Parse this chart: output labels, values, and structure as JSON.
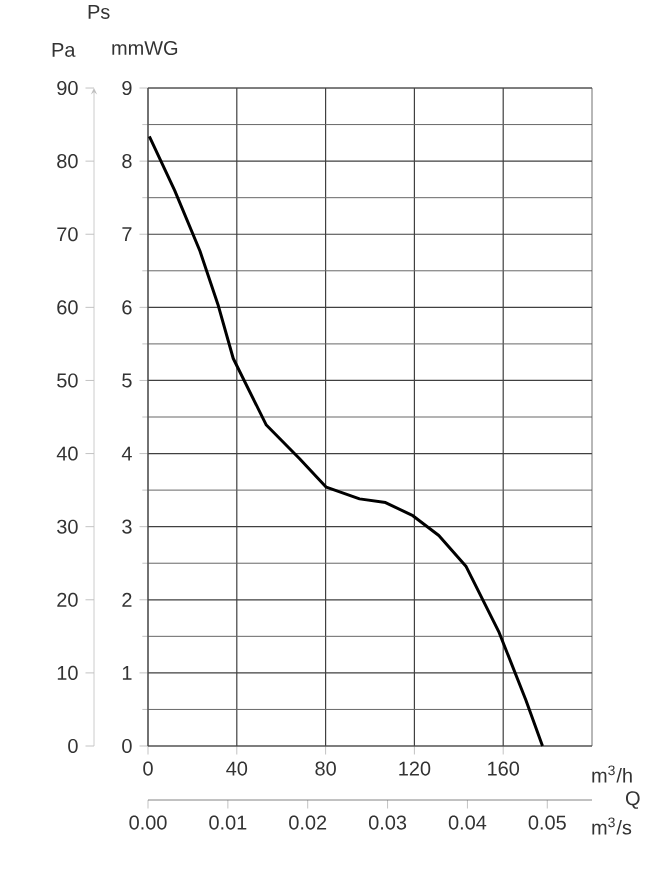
{
  "chart_data": {
    "type": "line",
    "xlabel": "m$^{3}$/h",
    "x2label": "m$^{3}$/s",
    "ylabel": "mmWG",
    "y2label": "Pa",
    "annotations": [
      "Ps",
      "Q"
    ],
    "x": [
      0.6,
      12,
      23.4,
      31.5,
      38.4,
      53.3,
      68.3,
      80.3,
      95.3,
      107,
      119.3,
      131,
      143.2,
      158.2,
      170.2,
      177.7
    ],
    "series": [
      {
        "color": "#000000",
        "values": [
          8.34,
          7.6,
          6.77,
          6.04,
          5.3,
          4.39,
          3.93,
          3.54,
          3.38,
          3.33,
          3.15,
          2.88,
          2.46,
          1.55,
          0.63,
          0
        ]
      }
    ],
    "xlim": [
      0,
      200
    ],
    "xticks": [
      0,
      40,
      80,
      120,
      160
    ],
    "ylim": [
      0,
      9
    ],
    "yticks": [
      0,
      1,
      2,
      3,
      4,
      5,
      6,
      7,
      8,
      9
    ],
    "y2lim": [
      0,
      90
    ],
    "y2ticks": [
      0,
      10,
      20,
      30,
      40,
      50,
      60,
      70,
      80,
      90
    ],
    "x2lim": [
      0,
      0.0556
    ],
    "x2ticks": [
      {
        "value": 0,
        "label": "0.00"
      },
      {
        "value": 0.01,
        "label": "0.01"
      },
      {
        "value": 0.02,
        "label": "0.02"
      },
      {
        "value": 0.03,
        "label": "0.03"
      },
      {
        "value": 0.04,
        "label": "0.04"
      },
      {
        "value": 0.05,
        "label": "0.05"
      }
    ],
    "grid": true,
    "marker": "none",
    "line_style": "solid"
  }
}
